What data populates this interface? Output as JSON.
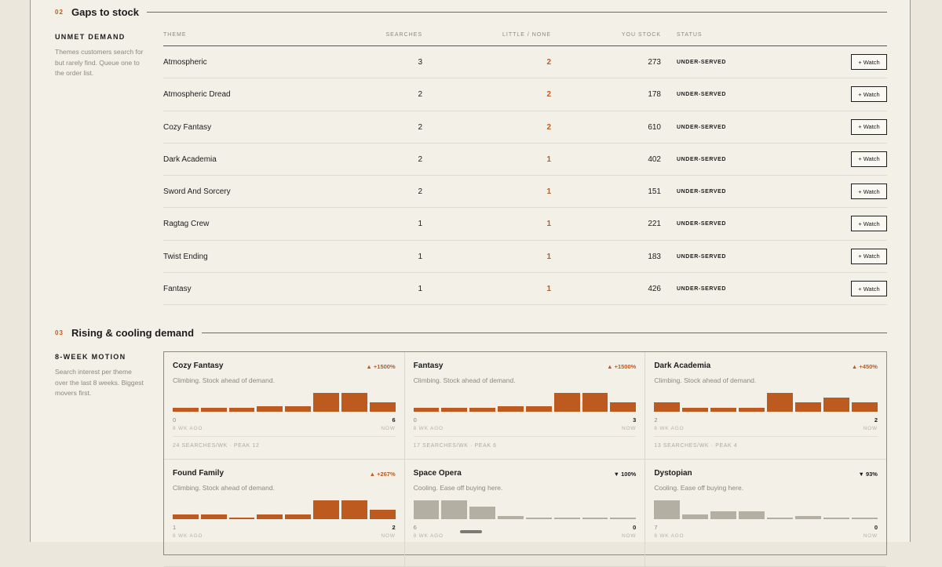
{
  "gaps": {
    "number": "02",
    "title": "Gaps to stock",
    "side_label": "UNMET DEMAND",
    "side_desc": "Themes customers search for but rarely find. Queue one to the order list.",
    "columns": {
      "theme": "THEME",
      "searches": "SEARCHES",
      "little": "LITTLE / NONE",
      "stock": "YOU STOCK",
      "status": "STATUS"
    },
    "rows": [
      {
        "theme": "Atmospheric",
        "searches": "3",
        "little": "2",
        "stock": "273",
        "status": "UNDER-SERVED",
        "action": "+ Watch"
      },
      {
        "theme": "Atmospheric Dread",
        "searches": "2",
        "little": "2",
        "stock": "178",
        "status": "UNDER-SERVED",
        "action": "+ Watch"
      },
      {
        "theme": "Cozy Fantasy",
        "searches": "2",
        "little": "2",
        "stock": "610",
        "status": "UNDER-SERVED",
        "action": "+ Watch"
      },
      {
        "theme": "Dark Academia",
        "searches": "2",
        "little": "1",
        "stock": "402",
        "status": "UNDER-SERVED",
        "action": "+ Watch"
      },
      {
        "theme": "Sword And Sorcery",
        "searches": "2",
        "little": "1",
        "stock": "151",
        "status": "UNDER-SERVED",
        "action": "+ Watch"
      },
      {
        "theme": "Ragtag Crew",
        "searches": "1",
        "little": "1",
        "stock": "221",
        "status": "UNDER-SERVED",
        "action": "+ Watch"
      },
      {
        "theme": "Twist Ending",
        "searches": "1",
        "little": "1",
        "stock": "183",
        "status": "UNDER-SERVED",
        "action": "+ Watch"
      },
      {
        "theme": "Fantasy",
        "searches": "1",
        "little": "1",
        "stock": "426",
        "status": "UNDER-SERVED",
        "action": "+ Watch"
      }
    ]
  },
  "rising": {
    "number": "03",
    "title": "Rising & cooling demand",
    "side_label": "8-WEEK MOTION",
    "side_desc": "Search interest per theme over the last 8 weeks. Biggest movers first.",
    "colors": {
      "up": "#bd5a20",
      "down": "#b4afa3"
    },
    "cards": [
      {
        "title": "Cozy Fantasy",
        "delta": "▲ +1500%",
        "direction": "up",
        "desc": "Climbing. Stock ahead of demand.",
        "weekly": [
          0.2,
          0.2,
          0.2,
          0.3,
          0.3,
          1,
          1,
          0.5
        ],
        "lo": "0",
        "hi": "6",
        "ago": "8 WK AGO",
        "now": "NOW",
        "foot": "24 SEARCHES/WK · PEAK 12"
      },
      {
        "title": "Fantasy",
        "delta": "▲ +1500%",
        "direction": "up",
        "desc": "Climbing. Stock ahead of demand.",
        "weekly": [
          0.2,
          0.2,
          0.2,
          0.3,
          0.3,
          1,
          1,
          0.5
        ],
        "lo": "0",
        "hi": "3",
        "ago": "8 WK AGO",
        "now": "NOW",
        "foot": "17 SEARCHES/WK · PEAK 6"
      },
      {
        "title": "Dark Academia",
        "delta": "▲ +450%",
        "direction": "up",
        "desc": "Climbing. Stock ahead of demand.",
        "weekly": [
          0.5,
          0.2,
          0.2,
          0.2,
          1,
          0.5,
          0.75,
          0.5
        ],
        "lo": "2",
        "hi": "2",
        "ago": "8 WK AGO",
        "now": "NOW",
        "foot": "13 SEARCHES/WK · PEAK 4"
      },
      {
        "title": "Found Family",
        "delta": "▲ +267%",
        "direction": "up",
        "desc": "Climbing. Stock ahead of demand.",
        "weekly": [
          0.25,
          0.25,
          0.1,
          0.25,
          0.25,
          1,
          1,
          0.5
        ],
        "lo": "1",
        "hi": "2",
        "ago": "8 WK AGO",
        "now": "NOW",
        "foot": ""
      },
      {
        "title": "Space Opera",
        "delta": "▼ 100%",
        "direction": "down",
        "desc": "Cooling. Ease off buying here.",
        "weekly": [
          1,
          1,
          0.65,
          0.15,
          0.08,
          0.08,
          0.08,
          0.08
        ],
        "lo": "6",
        "hi": "0",
        "ago": "8 WK AGO",
        "now": "NOW",
        "foot": ""
      },
      {
        "title": "Dystopian",
        "delta": "▼ 93%",
        "direction": "down",
        "desc": "Cooling. Ease off buying here.",
        "weekly": [
          1,
          0.25,
          0.4,
          0.4,
          0.08,
          0.15,
          0.08,
          0.08
        ],
        "lo": "7",
        "hi": "0",
        "ago": "8 WK AGO",
        "now": "NOW",
        "foot": ""
      }
    ]
  }
}
